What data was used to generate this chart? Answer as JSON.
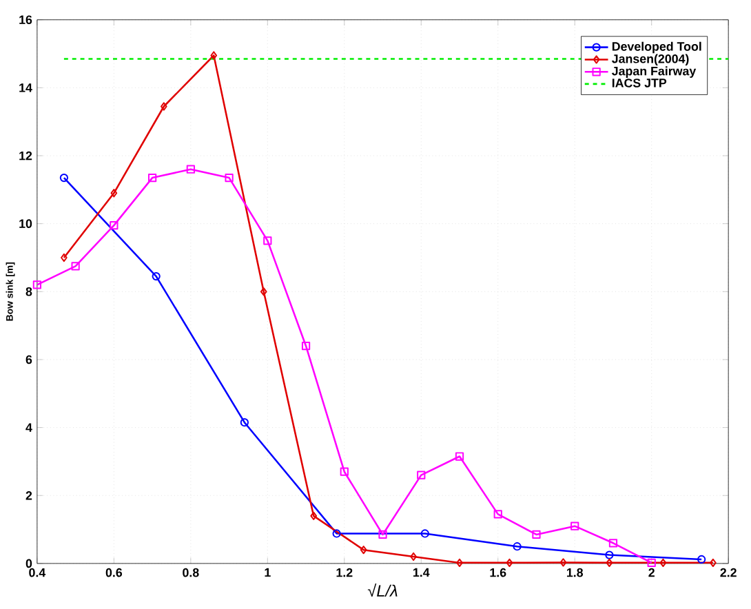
{
  "chart_data": {
    "type": "line",
    "xlabel": "√L/λ",
    "ylabel": "Bow sink [m]",
    "xlim": [
      0.4,
      2.2
    ],
    "ylim": [
      0,
      16
    ],
    "xticks": [
      0.4,
      0.6,
      0.8,
      1,
      1.2,
      1.4,
      1.6,
      1.8,
      2,
      2.2
    ],
    "yticks": [
      0,
      2,
      4,
      6,
      8,
      10,
      12,
      14,
      16
    ],
    "grid": true,
    "legend": "top right",
    "series": [
      {
        "name": "Developed Tool",
        "color": "#0000ff",
        "marker": "circle",
        "line_style": "solid",
        "x": [
          0.47,
          0.71,
          0.94,
          1.18,
          1.41,
          1.65,
          1.89,
          2.13
        ],
        "values": [
          11.35,
          8.45,
          4.15,
          0.88,
          0.88,
          0.5,
          0.25,
          0.12
        ]
      },
      {
        "name": "Jansen(2004)",
        "color": "#e00000",
        "marker": "diamond",
        "line_style": "solid",
        "x": [
          0.47,
          0.6,
          0.73,
          0.86,
          0.99,
          1.12,
          1.25,
          1.38,
          1.5,
          1.63,
          1.77,
          1.89,
          2.03,
          2.16
        ],
        "values": [
          9.0,
          10.9,
          13.45,
          14.95,
          8.0,
          1.4,
          0.4,
          0.2,
          0.02,
          0.02,
          0.03,
          0.02,
          0.02,
          0.02
        ]
      },
      {
        "name": "Japan Fairway",
        "color": "#ff00ff",
        "marker": "square",
        "line_style": "solid",
        "x": [
          0.4,
          0.5,
          0.6,
          0.7,
          0.8,
          0.9,
          1.0,
          1.1,
          1.2,
          1.3,
          1.4,
          1.5,
          1.6,
          1.7,
          1.8,
          1.9,
          2.0
        ],
        "values": [
          8.2,
          8.75,
          9.95,
          11.35,
          11.6,
          11.35,
          9.5,
          6.4,
          2.7,
          0.85,
          2.6,
          3.15,
          1.45,
          0.85,
          1.1,
          0.6,
          0.02
        ]
      },
      {
        "name": "IACS JTP",
        "color": "#00ee00",
        "marker": "none",
        "line_style": "dashed",
        "x": [
          0.47,
          2.2
        ],
        "values": [
          14.85,
          14.85
        ]
      }
    ]
  }
}
